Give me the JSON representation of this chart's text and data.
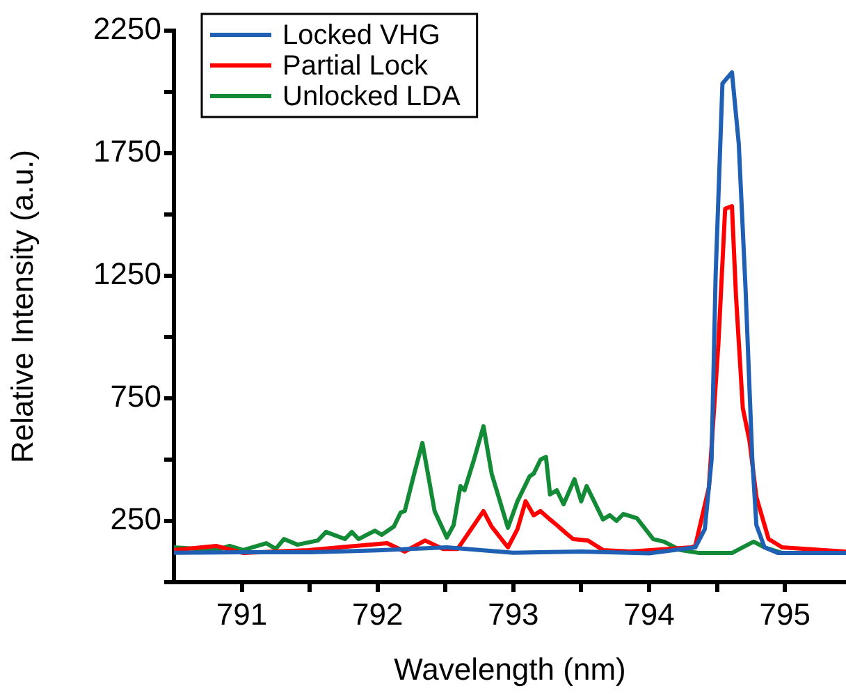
{
  "chart_data": {
    "type": "line",
    "xlabel": "Wavelength (nm)",
    "ylabel": "Relative Intensity (a.u.)",
    "xlim": [
      790.5,
      795.45
    ],
    "xticks": [
      791,
      {
        "value": 791.5,
        "label": null
      },
      792,
      {
        "value": 792.5,
        "label": null
      },
      793,
      {
        "value": 793.5,
        "label": null
      },
      794,
      {
        "value": 794.5,
        "label": null
      },
      795
    ],
    "ylim": [
      0,
      2250
    ],
    "yticks": [
      {
        "value": 0,
        "label": null
      },
      250,
      {
        "value": 500,
        "label": null
      },
      750,
      {
        "value": 1000,
        "label": null
      },
      1250,
      {
        "value": 1500,
        "label": null
      },
      1750,
      {
        "value": 2000,
        "label": null
      },
      2250
    ],
    "grid": false,
    "legend": "top left",
    "marker": "none",
    "line_style": "solid",
    "series": [
      {
        "name": "Locked VHG",
        "color": "#1f5fb4",
        "x": [
          790.5,
          791.0,
          791.5,
          792.0,
          792.51,
          793.0,
          793.5,
          794.0,
          794.34,
          794.41,
          794.46,
          794.49,
          794.54,
          794.61,
          794.66,
          794.71,
          794.76,
          794.79,
          794.85,
          794.95,
          795.44
        ],
        "values": [
          120,
          122,
          122,
          130,
          142,
          120,
          125,
          118,
          142,
          216,
          500,
          1256,
          2034,
          2080,
          1790,
          1199,
          500,
          233,
          142,
          119,
          119
        ]
      },
      {
        "name": "Partial Lock",
        "color": "#ff0000",
        "x": [
          790.5,
          790.81,
          791.01,
          791.49,
          792.07,
          792.2,
          792.35,
          792.48,
          792.59,
          792.78,
          792.84,
          792.96,
          793.03,
          793.09,
          793.15,
          793.2,
          793.27,
          793.32,
          793.39,
          793.44,
          793.55,
          793.66,
          793.86,
          794.31,
          794.34,
          794.44,
          794.51,
          794.56,
          794.61,
          794.64,
          794.69,
          794.74,
          794.79,
          794.88,
          794.98,
          795.44
        ],
        "values": [
          131,
          148,
          119,
          131,
          159,
          125,
          170,
          136,
          136,
          290,
          227,
          142,
          216,
          330,
          273,
          290,
          256,
          233,
          199,
          176,
          170,
          131,
          125,
          142,
          148,
          386,
          972,
          1523,
          1534,
          1165,
          710,
          574,
          347,
          176,
          142,
          125
        ]
      },
      {
        "name": "Unlocked LDA",
        "color": "#138a36",
        "x": [
          790.5,
          790.81,
          790.91,
          791.01,
          791.18,
          791.25,
          791.31,
          791.41,
          791.56,
          791.62,
          791.76,
          791.81,
          791.86,
          791.98,
          792.03,
          792.12,
          792.17,
          792.2,
          792.27,
          792.33,
          792.42,
          792.51,
          792.56,
          792.61,
          792.64,
          792.71,
          792.78,
          792.84,
          792.96,
          793.03,
          793.12,
          793.15,
          793.2,
          793.24,
          793.27,
          793.32,
          793.37,
          793.45,
          793.5,
          793.54,
          793.66,
          793.71,
          793.76,
          793.81,
          793.91,
          794.03,
          794.11,
          794.23,
          794.37,
          794.61,
          794.71,
          794.77,
          794.85,
          794.98,
          795.44
        ],
        "values": [
          142,
          131,
          148,
          131,
          159,
          136,
          176,
          153,
          170,
          205,
          176,
          205,
          176,
          210,
          193,
          227,
          284,
          290,
          443,
          568,
          290,
          182,
          233,
          392,
          375,
          500,
          636,
          443,
          222,
          330,
          432,
          443,
          500,
          511,
          358,
          375,
          318,
          420,
          330,
          392,
          256,
          273,
          250,
          278,
          261,
          176,
          165,
          131,
          119,
          119,
          148,
          165,
          142,
          119,
          119
        ]
      }
    ]
  }
}
